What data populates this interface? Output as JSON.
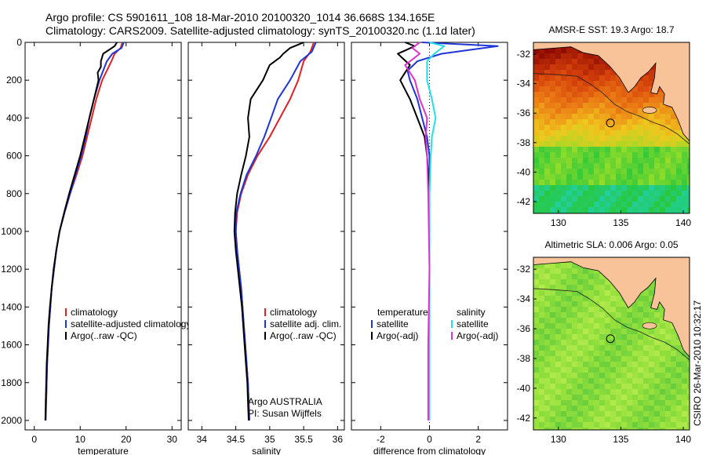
{
  "title_line1": "Argo profile: CS 5901611_108 18-Mar-2010 20100320_1014 36.668S 134.165E",
  "title_line2": "Climatology: CARS2009. Satellite-adjusted climatology: synTS_20100320.nc (1.1d later)",
  "credit": "CSIRO 26-Mar-2010 10:32:17",
  "colors": {
    "red": "#dd2222",
    "blue": "#1f36d6",
    "black": "#000000",
    "cyan": "#22e0e6",
    "magenta": "#dd33cc",
    "land": "#f9c39a"
  },
  "chart_data": [
    {
      "type": "line",
      "name": "temperature",
      "xlabel": "temperature",
      "xlim": [
        -2,
        32
      ],
      "ylim": [
        0,
        2050
      ],
      "y_reversed": true,
      "xticks": [
        0,
        10,
        20,
        30
      ],
      "yticks": [
        0,
        200,
        400,
        600,
        800,
        1000,
        1200,
        1400,
        1600,
        1800,
        2000
      ],
      "legend": [
        "climatology",
        "satellite-adjusted climatology",
        "Argo(..raw -QC)"
      ],
      "series": [
        {
          "name": "climatology",
          "color": "red",
          "points": [
            [
              19.2,
              0
            ],
            [
              18.8,
              30
            ],
            [
              17.5,
              60
            ],
            [
              16.8,
              100
            ],
            [
              15.8,
              150
            ],
            [
              14.8,
              200
            ],
            [
              13.5,
              300
            ],
            [
              12.5,
              400
            ],
            [
              11.5,
              500
            ],
            [
              10.5,
              600
            ],
            [
              9.2,
              700
            ],
            [
              7.8,
              800
            ],
            [
              6.6,
              900
            ],
            [
              5.5,
              1000
            ],
            [
              4.8,
              1100
            ],
            [
              4.3,
              1200
            ],
            [
              3.8,
              1300
            ],
            [
              3.5,
              1400
            ],
            [
              3.2,
              1500
            ],
            [
              3.0,
              1600
            ],
            [
              2.8,
              1700
            ],
            [
              2.7,
              1800
            ],
            [
              2.6,
              1900
            ]
          ]
        },
        {
          "name": "satellite-adjusted climatology",
          "color": "blue",
          "points": [
            [
              19.5,
              0
            ],
            [
              19.0,
              30
            ],
            [
              17.0,
              60
            ],
            [
              15.8,
              100
            ],
            [
              15.0,
              150
            ],
            [
              14.2,
              200
            ],
            [
              13.0,
              300
            ],
            [
              12.0,
              400
            ],
            [
              11.2,
              500
            ],
            [
              10.2,
              600
            ],
            [
              9.0,
              700
            ],
            [
              7.8,
              800
            ],
            [
              6.6,
              900
            ],
            [
              5.5,
              1000
            ],
            [
              4.8,
              1100
            ],
            [
              4.3,
              1200
            ],
            [
              3.8,
              1300
            ],
            [
              3.5,
              1400
            ],
            [
              3.2,
              1500
            ],
            [
              3.0,
              1600
            ],
            [
              2.8,
              1700
            ],
            [
              2.7,
              1800
            ],
            [
              2.6,
              1900
            ],
            [
              2.5,
              2000
            ]
          ]
        },
        {
          "name": "Argo(..raw -QC)",
          "color": "black",
          "points": [
            [
              18.0,
              0
            ],
            [
              17.5,
              20
            ],
            [
              15.0,
              60
            ],
            [
              14.5,
              100
            ],
            [
              14.5,
              130
            ],
            [
              13.8,
              160
            ],
            [
              14.0,
              200
            ],
            [
              13.0,
              300
            ],
            [
              12.0,
              400
            ],
            [
              11.0,
              500
            ],
            [
              10.0,
              600
            ],
            [
              8.8,
              700
            ],
            [
              7.6,
              800
            ],
            [
              6.5,
              900
            ],
            [
              5.5,
              1000
            ],
            [
              4.8,
              1100
            ],
            [
              4.2,
              1200
            ],
            [
              3.8,
              1300
            ],
            [
              3.4,
              1400
            ],
            [
              3.1,
              1500
            ],
            [
              2.9,
              1600
            ],
            [
              2.7,
              1700
            ],
            [
              2.6,
              1800
            ],
            [
              2.5,
              1900
            ],
            [
              2.4,
              2000
            ]
          ]
        }
      ]
    },
    {
      "type": "line",
      "name": "salinity",
      "xlabel": "salinity",
      "xlim": [
        33.8,
        36.1
      ],
      "ylim": [
        0,
        2050
      ],
      "y_reversed": true,
      "xticks": [
        34,
        34.5,
        35,
        35.5,
        36
      ],
      "yticks": [
        0,
        200,
        400,
        600,
        800,
        1000,
        1200,
        1400,
        1600,
        1800,
        2000
      ],
      "legend": [
        "climatology",
        "satellite adj. clim.",
        "Argo(..raw -QC)"
      ],
      "annotation": [
        "Argo AUSTRALIA",
        "PI: Susan Wijffels"
      ],
      "series": [
        {
          "name": "climatology",
          "color": "red",
          "points": [
            [
              35.65,
              0
            ],
            [
              35.6,
              50
            ],
            [
              35.5,
              100
            ],
            [
              35.42,
              200
            ],
            [
              35.3,
              300
            ],
            [
              35.15,
              400
            ],
            [
              35.0,
              500
            ],
            [
              34.82,
              600
            ],
            [
              34.68,
              700
            ],
            [
              34.58,
              800
            ],
            [
              34.52,
              900
            ],
            [
              34.5,
              1000
            ],
            [
              34.52,
              1100
            ],
            [
              34.55,
              1200
            ],
            [
              34.58,
              1300
            ],
            [
              34.6,
              1400
            ],
            [
              34.62,
              1500
            ],
            [
              34.64,
              1600
            ],
            [
              34.66,
              1700
            ],
            [
              34.68,
              1800
            ],
            [
              34.69,
              1900
            ],
            [
              34.7,
              2000
            ]
          ]
        },
        {
          "name": "satellite adj. clim.",
          "color": "blue",
          "points": [
            [
              35.68,
              0
            ],
            [
              35.62,
              50
            ],
            [
              35.45,
              100
            ],
            [
              35.3,
              200
            ],
            [
              35.12,
              300
            ],
            [
              35.02,
              400
            ],
            [
              34.92,
              500
            ],
            [
              34.8,
              600
            ],
            [
              34.66,
              700
            ],
            [
              34.57,
              800
            ],
            [
              34.51,
              900
            ],
            [
              34.5,
              1000
            ],
            [
              34.52,
              1100
            ],
            [
              34.55,
              1200
            ],
            [
              34.58,
              1300
            ],
            [
              34.6,
              1400
            ],
            [
              34.62,
              1500
            ],
            [
              34.64,
              1600
            ],
            [
              34.66,
              1700
            ],
            [
              34.68,
              1800
            ],
            [
              34.69,
              1900
            ],
            [
              34.7,
              2000
            ]
          ]
        },
        {
          "name": "Argo(..raw -QC)",
          "color": "black",
          "points": [
            [
              35.5,
              0
            ],
            [
              35.3,
              30
            ],
            [
              35.2,
              60
            ],
            [
              35.15,
              80
            ],
            [
              35.0,
              120
            ],
            [
              34.9,
              200
            ],
            [
              34.72,
              300
            ],
            [
              34.68,
              400
            ],
            [
              34.7,
              500
            ],
            [
              34.65,
              600
            ],
            [
              34.58,
              700
            ],
            [
              34.52,
              800
            ],
            [
              34.49,
              900
            ],
            [
              34.48,
              1000
            ],
            [
              34.5,
              1100
            ],
            [
              34.53,
              1200
            ],
            [
              34.56,
              1300
            ],
            [
              34.59,
              1400
            ],
            [
              34.61,
              1500
            ],
            [
              34.63,
              1600
            ],
            [
              34.65,
              1700
            ],
            [
              34.67,
              1800
            ],
            [
              34.68,
              1900
            ],
            [
              34.69,
              2000
            ]
          ]
        }
      ]
    },
    {
      "type": "line",
      "name": "difference",
      "xlabel": "difference from climatology",
      "xlim": [
        -3.2,
        3.2
      ],
      "ylim": [
        0,
        2050
      ],
      "y_reversed": true,
      "xticks": [
        -2,
        0,
        2
      ],
      "yticks": [
        0,
        200,
        400,
        600,
        800,
        1000,
        1200,
        1400,
        1600,
        1800,
        2000
      ],
      "legend_left_header": "temperature",
      "legend_right_header": "salinity",
      "legend_left": [
        "satellite",
        "Argo(-adj)"
      ],
      "legend_right": [
        "satellite",
        "Argo(-adj)"
      ],
      "series": [
        {
          "name": "temperature satellite",
          "color": "blue",
          "points": [
            [
              -0.3,
              0
            ],
            [
              2.8,
              20
            ],
            [
              0.5,
              60
            ],
            [
              -0.5,
              100
            ],
            [
              -0.9,
              150
            ],
            [
              -0.8,
              200
            ],
            [
              -0.5,
              300
            ],
            [
              -0.3,
              400
            ],
            [
              -0.1,
              500
            ],
            [
              0.0,
              600
            ],
            [
              0.0,
              800
            ],
            [
              0.0,
              1200
            ],
            [
              0.0,
              1600
            ],
            [
              0.0,
              2000
            ]
          ]
        },
        {
          "name": "temperature Argo(-adj)",
          "color": "black",
          "points": [
            [
              -1.0,
              0
            ],
            [
              -0.6,
              20
            ],
            [
              -1.3,
              60
            ],
            [
              -0.8,
              120
            ],
            [
              -1.2,
              200
            ],
            [
              -0.8,
              300
            ],
            [
              -0.5,
              400
            ],
            [
              -0.2,
              500
            ],
            [
              -0.1,
              600
            ],
            [
              0.0,
              800
            ],
            [
              0.0,
              1200
            ],
            [
              0.0,
              1600
            ],
            [
              0.0,
              2000
            ]
          ]
        },
        {
          "name": "salinity satellite",
          "color": "cyan",
          "points": [
            [
              0.0,
              0
            ],
            [
              0.6,
              20
            ],
            [
              0.2,
              60
            ],
            [
              -0.1,
              100
            ],
            [
              -0.1,
              200
            ],
            [
              0.1,
              300
            ],
            [
              0.25,
              400
            ],
            [
              0.1,
              500
            ],
            [
              0.05,
              600
            ],
            [
              0.0,
              800
            ],
            [
              0.0,
              1200
            ],
            [
              0.0,
              2000
            ]
          ]
        },
        {
          "name": "salinity Argo(-adj)",
          "color": "magenta",
          "points": [
            [
              -0.4,
              0
            ],
            [
              -0.7,
              30
            ],
            [
              -0.4,
              60
            ],
            [
              -1.0,
              120
            ],
            [
              -0.6,
              200
            ],
            [
              -0.4,
              300
            ],
            [
              -0.1,
              400
            ],
            [
              -0.15,
              500
            ],
            [
              -0.1,
              600
            ],
            [
              -0.05,
              800
            ],
            [
              0.0,
              1200
            ],
            [
              -0.05,
              1600
            ],
            [
              -0.05,
              2000
            ]
          ]
        }
      ]
    },
    {
      "type": "heatmap",
      "name": "sst-map",
      "title": "AMSR-E SST: 19.3 Argo: 18.7",
      "xlim": [
        128,
        140.5
      ],
      "ylim": [
        -42.8,
        -31.2
      ],
      "xticks": [
        130,
        135,
        140
      ],
      "yticks": [
        -32,
        -34,
        -36,
        -38,
        -40,
        -42
      ],
      "marker": [
        134.165,
        -36.668
      ]
    },
    {
      "type": "heatmap",
      "name": "sla-map",
      "title": "Altimetric SLA: 0.006 Argo: 0.05",
      "xlim": [
        128,
        140.5
      ],
      "ylim": [
        -42.8,
        -31.2
      ],
      "xticks": [
        130,
        135,
        140
      ],
      "yticks": [
        -32,
        -34,
        -36,
        -38,
        -40,
        -42
      ],
      "marker": [
        134.165,
        -36.668
      ]
    }
  ]
}
